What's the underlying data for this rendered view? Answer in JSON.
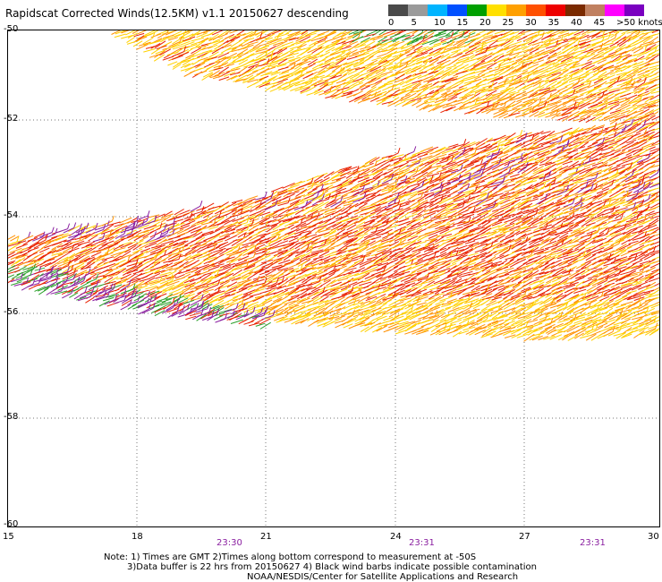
{
  "title": "Rapidscat Corrected Winds(12.5KM) v1.1 20150627 descending",
  "legend": {
    "colors": [
      "#4a4a4a",
      "#9a9a9a",
      "#00b4ff",
      "#0050ff",
      "#00a000",
      "#ffe000",
      "#ffa000",
      "#ff5000",
      "#ee0000",
      "#7a2a00",
      "#c08060",
      "#ff00ff",
      "#7a00c0"
    ],
    "labels": [
      "0",
      "5",
      "10",
      "15",
      "20",
      "25",
      "30",
      "35",
      "40",
      "45",
      ">50 knots"
    ]
  },
  "map": {
    "lat_labels": [
      "-50",
      "-52",
      "-54",
      "-56",
      "-58",
      "-60"
    ],
    "lon_labels": [
      "15",
      "18",
      "21",
      "24",
      "27",
      "30"
    ],
    "time_labels": [
      "23:30",
      "23:31",
      "23:31"
    ],
    "wind_colors": {
      "green": "#2aa02a",
      "yellow": "#ffd000",
      "orange": "#ff9000",
      "red": "#e82000",
      "purple": "#8a1fa0"
    }
  },
  "notes": [
    "Note: 1) Times are GMT 2)Times along bottom correspond to measurement at -50S",
    "3)Data buffer is 22 hrs from 20150627 4) Black wind barbs indicate possible contamination",
    "NOAA/NESDIS/Center for Satellite Applications and Research"
  ]
}
